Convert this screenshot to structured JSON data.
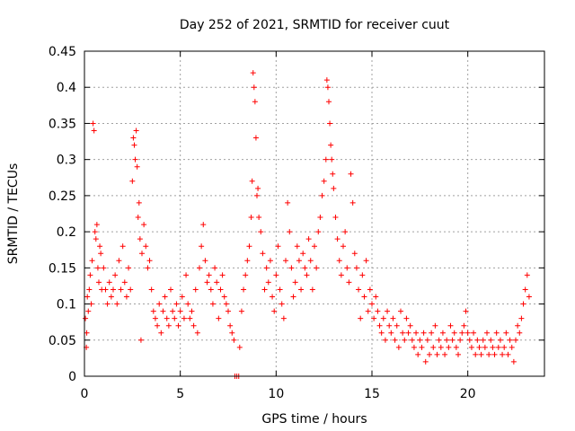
{
  "chart_data": {
    "type": "scatter",
    "title": "Day 252 of 2021, SRMTID for receiver cuut",
    "xlabel": "GPS time / hours",
    "ylabel": "SRMTID / TECUs",
    "xlim": [
      0,
      24
    ],
    "ylim": [
      0,
      0.45
    ],
    "xticks": [
      0,
      5,
      10,
      15,
      20
    ],
    "xtick_labels": [
      "0",
      "5",
      "10",
      "15",
      "20"
    ],
    "yticks": [
      0,
      0.05,
      0.1,
      0.15,
      0.2,
      0.25,
      0.3,
      0.35,
      0.4,
      0.45
    ],
    "ytick_labels": [
      "0",
      "0.05",
      "0.1",
      "0.15",
      "0.2",
      "0.25",
      "0.3",
      "0.35",
      "0.4",
      "0.45"
    ],
    "grid": true,
    "marker": "+",
    "color": "#ff0000",
    "series": [
      {
        "name": "SRMTID",
        "points": [
          [
            0.05,
            0.08
          ],
          [
            0.1,
            0.04
          ],
          [
            0.12,
            0.06
          ],
          [
            0.15,
            0.11
          ],
          [
            0.2,
            0.09
          ],
          [
            0.25,
            0.12
          ],
          [
            0.3,
            0.14
          ],
          [
            0.35,
            0.1
          ],
          [
            0.4,
            0.16
          ],
          [
            0.45,
            0.35
          ],
          [
            0.5,
            0.34
          ],
          [
            0.55,
            0.2
          ],
          [
            0.6,
            0.19
          ],
          [
            0.65,
            0.21
          ],
          [
            0.7,
            0.15
          ],
          [
            0.75,
            0.13
          ],
          [
            0.8,
            0.18
          ],
          [
            0.85,
            0.17
          ],
          [
            0.9,
            0.12
          ],
          [
            1.0,
            0.15
          ],
          [
            1.1,
            0.12
          ],
          [
            1.2,
            0.1
          ],
          [
            1.3,
            0.13
          ],
          [
            1.4,
            0.11
          ],
          [
            1.5,
            0.12
          ],
          [
            1.6,
            0.14
          ],
          [
            1.7,
            0.1
          ],
          [
            1.8,
            0.16
          ],
          [
            1.9,
            0.12
          ],
          [
            2.0,
            0.18
          ],
          [
            2.1,
            0.13
          ],
          [
            2.2,
            0.11
          ],
          [
            2.3,
            0.15
          ],
          [
            2.4,
            0.12
          ],
          [
            2.5,
            0.27
          ],
          [
            2.55,
            0.33
          ],
          [
            2.6,
            0.32
          ],
          [
            2.65,
            0.3
          ],
          [
            2.7,
            0.34
          ],
          [
            2.75,
            0.29
          ],
          [
            2.8,
            0.22
          ],
          [
            2.85,
            0.24
          ],
          [
            2.9,
            0.19
          ],
          [
            2.95,
            0.05
          ],
          [
            3.0,
            0.17
          ],
          [
            3.1,
            0.21
          ],
          [
            3.2,
            0.18
          ],
          [
            3.3,
            0.15
          ],
          [
            3.4,
            0.16
          ],
          [
            3.5,
            0.12
          ],
          [
            3.6,
            0.09
          ],
          [
            3.7,
            0.08
          ],
          [
            3.8,
            0.07
          ],
          [
            3.9,
            0.1
          ],
          [
            4.0,
            0.06
          ],
          [
            4.1,
            0.09
          ],
          [
            4.2,
            0.11
          ],
          [
            4.3,
            0.08
          ],
          [
            4.4,
            0.07
          ],
          [
            4.5,
            0.12
          ],
          [
            4.6,
            0.09
          ],
          [
            4.7,
            0.08
          ],
          [
            4.8,
            0.1
          ],
          [
            4.9,
            0.07
          ],
          [
            5.0,
            0.09
          ],
          [
            5.1,
            0.11
          ],
          [
            5.2,
            0.08
          ],
          [
            5.3,
            0.14
          ],
          [
            5.4,
            0.1
          ],
          [
            5.5,
            0.08
          ],
          [
            5.6,
            0.09
          ],
          [
            5.7,
            0.07
          ],
          [
            5.8,
            0.12
          ],
          [
            5.9,
            0.06
          ],
          [
            6.0,
            0.15
          ],
          [
            6.1,
            0.18
          ],
          [
            6.2,
            0.21
          ],
          [
            6.3,
            0.16
          ],
          [
            6.4,
            0.13
          ],
          [
            6.5,
            0.14
          ],
          [
            6.6,
            0.12
          ],
          [
            6.7,
            0.1
          ],
          [
            6.8,
            0.15
          ],
          [
            6.9,
            0.13
          ],
          [
            7.0,
            0.08
          ],
          [
            7.1,
            0.12
          ],
          [
            7.2,
            0.14
          ],
          [
            7.3,
            0.11
          ],
          [
            7.4,
            0.1
          ],
          [
            7.5,
            0.09
          ],
          [
            7.6,
            0.07
          ],
          [
            7.7,
            0.06
          ],
          [
            7.8,
            0.05
          ],
          [
            7.85,
            0.0
          ],
          [
            7.95,
            0.0
          ],
          [
            8.05,
            0.0
          ],
          [
            8.1,
            0.04
          ],
          [
            8.2,
            0.09
          ],
          [
            8.3,
            0.12
          ],
          [
            8.4,
            0.14
          ],
          [
            8.5,
            0.16
          ],
          [
            8.6,
            0.18
          ],
          [
            8.7,
            0.22
          ],
          [
            8.75,
            0.27
          ],
          [
            8.8,
            0.42
          ],
          [
            8.85,
            0.4
          ],
          [
            8.9,
            0.38
          ],
          [
            8.95,
            0.33
          ],
          [
            9.0,
            0.25
          ],
          [
            9.05,
            0.26
          ],
          [
            9.1,
            0.22
          ],
          [
            9.2,
            0.2
          ],
          [
            9.3,
            0.17
          ],
          [
            9.4,
            0.12
          ],
          [
            9.5,
            0.15
          ],
          [
            9.6,
            0.13
          ],
          [
            9.7,
            0.16
          ],
          [
            9.8,
            0.11
          ],
          [
            9.9,
            0.09
          ],
          [
            10.0,
            0.14
          ],
          [
            10.1,
            0.18
          ],
          [
            10.2,
            0.12
          ],
          [
            10.3,
            0.1
          ],
          [
            10.4,
            0.08
          ],
          [
            10.5,
            0.16
          ],
          [
            10.6,
            0.24
          ],
          [
            10.7,
            0.2
          ],
          [
            10.8,
            0.15
          ],
          [
            10.9,
            0.11
          ],
          [
            11.0,
            0.13
          ],
          [
            11.1,
            0.18
          ],
          [
            11.2,
            0.16
          ],
          [
            11.3,
            0.12
          ],
          [
            11.4,
            0.17
          ],
          [
            11.5,
            0.15
          ],
          [
            11.6,
            0.14
          ],
          [
            11.7,
            0.19
          ],
          [
            11.8,
            0.16
          ],
          [
            11.9,
            0.12
          ],
          [
            12.0,
            0.18
          ],
          [
            12.1,
            0.15
          ],
          [
            12.2,
            0.2
          ],
          [
            12.3,
            0.22
          ],
          [
            12.4,
            0.25
          ],
          [
            12.5,
            0.27
          ],
          [
            12.6,
            0.3
          ],
          [
            12.65,
            0.41
          ],
          [
            12.7,
            0.4
          ],
          [
            12.75,
            0.38
          ],
          [
            12.8,
            0.35
          ],
          [
            12.85,
            0.32
          ],
          [
            12.9,
            0.3
          ],
          [
            12.95,
            0.28
          ],
          [
            13.0,
            0.26
          ],
          [
            13.1,
            0.22
          ],
          [
            13.2,
            0.19
          ],
          [
            13.3,
            0.16
          ],
          [
            13.4,
            0.14
          ],
          [
            13.5,
            0.18
          ],
          [
            13.6,
            0.2
          ],
          [
            13.7,
            0.15
          ],
          [
            13.8,
            0.13
          ],
          [
            13.9,
            0.28
          ],
          [
            14.0,
            0.24
          ],
          [
            14.1,
            0.17
          ],
          [
            14.2,
            0.15
          ],
          [
            14.3,
            0.12
          ],
          [
            14.4,
            0.08
          ],
          [
            14.5,
            0.14
          ],
          [
            14.6,
            0.11
          ],
          [
            14.7,
            0.16
          ],
          [
            14.8,
            0.09
          ],
          [
            14.9,
            0.12
          ],
          [
            15.0,
            0.1
          ],
          [
            15.1,
            0.08
          ],
          [
            15.2,
            0.11
          ],
          [
            15.3,
            0.09
          ],
          [
            15.4,
            0.07
          ],
          [
            15.5,
            0.06
          ],
          [
            15.6,
            0.08
          ],
          [
            15.7,
            0.05
          ],
          [
            15.8,
            0.09
          ],
          [
            15.9,
            0.07
          ],
          [
            16.0,
            0.06
          ],
          [
            16.1,
            0.08
          ],
          [
            16.2,
            0.05
          ],
          [
            16.3,
            0.07
          ],
          [
            16.4,
            0.04
          ],
          [
            16.5,
            0.09
          ],
          [
            16.6,
            0.06
          ],
          [
            16.7,
            0.05
          ],
          [
            16.8,
            0.08
          ],
          [
            16.9,
            0.06
          ],
          [
            17.0,
            0.07
          ],
          [
            17.1,
            0.05
          ],
          [
            17.2,
            0.04
          ],
          [
            17.3,
            0.06
          ],
          [
            17.4,
            0.03
          ],
          [
            17.5,
            0.05
          ],
          [
            17.6,
            0.04
          ],
          [
            17.7,
            0.06
          ],
          [
            17.8,
            0.02
          ],
          [
            17.9,
            0.05
          ],
          [
            18.0,
            0.03
          ],
          [
            18.1,
            0.06
          ],
          [
            18.2,
            0.04
          ],
          [
            18.3,
            0.07
          ],
          [
            18.4,
            0.03
          ],
          [
            18.5,
            0.05
          ],
          [
            18.6,
            0.04
          ],
          [
            18.7,
            0.06
          ],
          [
            18.8,
            0.03
          ],
          [
            18.9,
            0.05
          ],
          [
            19.0,
            0.04
          ],
          [
            19.1,
            0.07
          ],
          [
            19.2,
            0.05
          ],
          [
            19.3,
            0.06
          ],
          [
            19.4,
            0.04
          ],
          [
            19.5,
            0.03
          ],
          [
            19.6,
            0.05
          ],
          [
            19.7,
            0.06
          ],
          [
            19.8,
            0.07
          ],
          [
            19.9,
            0.09
          ],
          [
            20.0,
            0.06
          ],
          [
            20.1,
            0.05
          ],
          [
            20.2,
            0.04
          ],
          [
            20.3,
            0.06
          ],
          [
            20.4,
            0.03
          ],
          [
            20.5,
            0.05
          ],
          [
            20.6,
            0.04
          ],
          [
            20.7,
            0.03
          ],
          [
            20.8,
            0.05
          ],
          [
            20.9,
            0.04
          ],
          [
            21.0,
            0.06
          ],
          [
            21.1,
            0.03
          ],
          [
            21.2,
            0.05
          ],
          [
            21.3,
            0.04
          ],
          [
            21.4,
            0.03
          ],
          [
            21.5,
            0.06
          ],
          [
            21.6,
            0.04
          ],
          [
            21.7,
            0.05
          ],
          [
            21.8,
            0.03
          ],
          [
            21.9,
            0.04
          ],
          [
            22.0,
            0.06
          ],
          [
            22.1,
            0.03
          ],
          [
            22.2,
            0.05
          ],
          [
            22.3,
            0.04
          ],
          [
            22.4,
            0.02
          ],
          [
            22.5,
            0.05
          ],
          [
            22.6,
            0.07
          ],
          [
            22.7,
            0.06
          ],
          [
            22.8,
            0.08
          ],
          [
            22.9,
            0.1
          ],
          [
            23.0,
            0.12
          ],
          [
            23.1,
            0.14
          ],
          [
            23.2,
            0.11
          ]
        ]
      }
    ]
  }
}
